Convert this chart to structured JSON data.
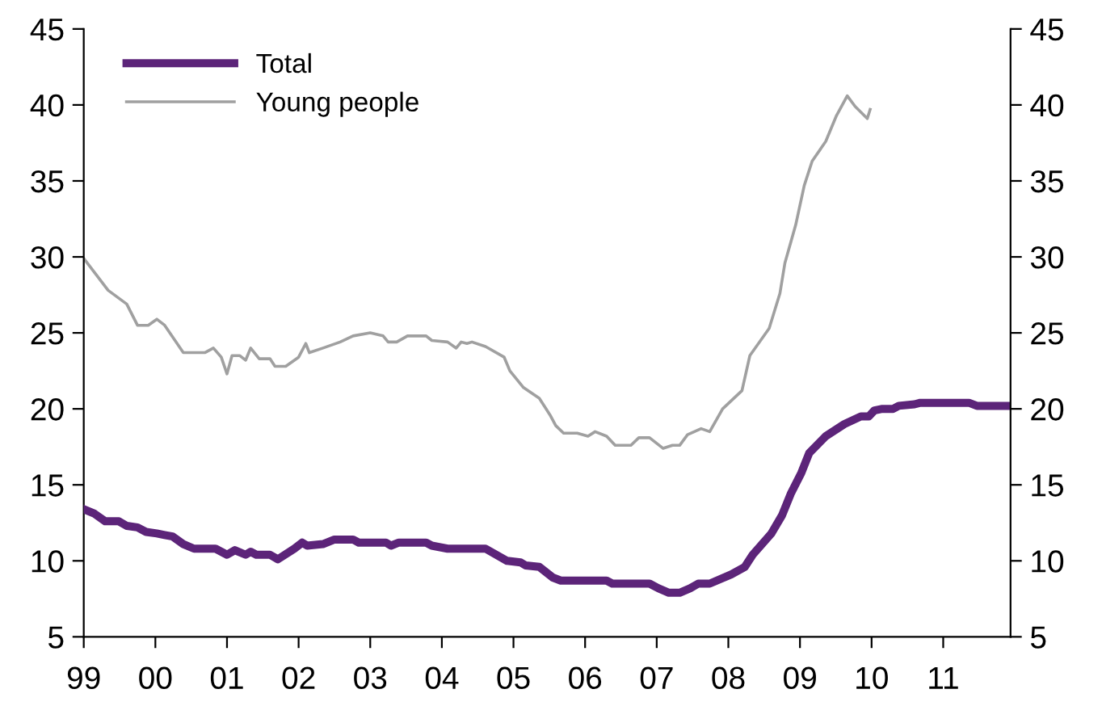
{
  "chart_data": {
    "type": "line",
    "xlim": [
      1999,
      2011.94
    ],
    "xticks": [
      {
        "value": 1999,
        "label": "99"
      },
      {
        "value": 2000,
        "label": "00"
      },
      {
        "value": 2001,
        "label": "01"
      },
      {
        "value": 2002,
        "label": "02"
      },
      {
        "value": 2003,
        "label": "03"
      },
      {
        "value": 2004,
        "label": "04"
      },
      {
        "value": 2005,
        "label": "05"
      },
      {
        "value": 2006,
        "label": "06"
      },
      {
        "value": 2007,
        "label": "07"
      },
      {
        "value": 2008,
        "label": "08"
      },
      {
        "value": 2009,
        "label": "09"
      },
      {
        "value": 2010,
        "label": "10"
      },
      {
        "value": 2011,
        "label": "11"
      }
    ],
    "ylim": [
      5,
      45
    ],
    "yticks": [
      5,
      10,
      15,
      20,
      25,
      30,
      35,
      40,
      45
    ],
    "y2lim": [
      5,
      45
    ],
    "y2ticks": [
      5,
      10,
      15,
      20,
      25,
      30,
      35,
      40,
      45
    ],
    "grid": false,
    "legend": "top left",
    "marker": "none",
    "line_style": "solid",
    "series": [
      {
        "name": "Total",
        "color": "#5c2479",
        "x": [
          1999,
          1999.15,
          1999.3,
          1999.49,
          1999.6,
          1999.75,
          1999.87,
          2000.02,
          2000.13,
          2000.24,
          2000.39,
          2000.54,
          2000.84,
          2001.0,
          2001.11,
          2001.26,
          2001.33,
          2001.41,
          2001.6,
          2001.71,
          2001.94,
          2002.05,
          2002.12,
          2002.34,
          2002.5,
          2002.76,
          2002.84,
          2003.22,
          2003.29,
          2003.4,
          2003.78,
          2003.86,
          2004.08,
          2004.61,
          2004.91,
          2005.1,
          2005.17,
          2005.36,
          2005.55,
          2005.66,
          2005.89,
          2006.04,
          2006.3,
          2006.38,
          2006.9,
          2007.02,
          2007.17,
          2007.32,
          2007.47,
          2007.58,
          2007.74,
          2008.04,
          2008.23,
          2008.34,
          2008.6,
          2008.75,
          2008.87,
          2009.02,
          2009.13,
          2009.36,
          2009.62,
          2009.85,
          2009.96,
          2010.04,
          2010.15,
          2010.3,
          2010.38,
          2010.6,
          2010.68,
          2011.36,
          2011.47,
          2011.94
        ],
        "values": [
          13.4,
          13.1,
          12.6,
          12.6,
          12.3,
          12.2,
          11.9,
          11.8,
          11.7,
          11.6,
          11.1,
          10.8,
          10.8,
          10.4,
          10.7,
          10.4,
          10.6,
          10.4,
          10.4,
          10.1,
          10.8,
          11.2,
          11.0,
          11.1,
          11.4,
          11.4,
          11.2,
          11.2,
          11.0,
          11.2,
          11.2,
          11.0,
          10.8,
          10.8,
          10.0,
          9.9,
          9.7,
          9.6,
          8.9,
          8.7,
          8.7,
          8.7,
          8.7,
          8.5,
          8.5,
          8.2,
          7.9,
          7.9,
          8.2,
          8.5,
          8.5,
          9.1,
          9.6,
          10.4,
          11.8,
          13.0,
          14.4,
          15.8,
          17.1,
          18.2,
          19.0,
          19.5,
          19.5,
          19.9,
          20.0,
          20.0,
          20.2,
          20.3,
          20.4,
          20.4,
          20.2,
          20.2
        ]
      },
      {
        "name": "Young people",
        "color": "#a0a0a0",
        "x": [
          1999,
          1999.34,
          1999.6,
          1999.75,
          1999.9,
          2000.02,
          2000.13,
          2000.39,
          2000.69,
          2000.81,
          2000.92,
          2001.0,
          2001.07,
          2001.18,
          2001.26,
          2001.33,
          2001.45,
          2001.6,
          2001.67,
          2001.82,
          2002.0,
          2002.1,
          2002.15,
          2002.34,
          2002.58,
          2002.76,
          2003.0,
          2003.18,
          2003.25,
          2003.37,
          2003.52,
          2003.78,
          2003.86,
          2004.08,
          2004.2,
          2004.27,
          2004.35,
          2004.42,
          2004.61,
          2004.87,
          2004.95,
          2005.14,
          2005.36,
          2005.51,
          2005.59,
          2005.7,
          2005.89,
          2006.04,
          2006.14,
          2006.3,
          2006.42,
          2006.64,
          2006.75,
          2006.9,
          2007.09,
          2007.22,
          2007.32,
          2007.43,
          2007.62,
          2007.74,
          2007.92,
          2008.19,
          2008.3,
          2008.57,
          2008.72,
          2008.79,
          2008.94,
          2009.06,
          2009.17,
          2009.36,
          2009.51,
          2009.66,
          2009.77,
          2009.94,
          2009.98
        ],
        "values": [
          29.9,
          27.8,
          26.9,
          25.5,
          25.5,
          25.9,
          25.5,
          23.7,
          23.7,
          24.0,
          23.4,
          22.3,
          23.5,
          23.5,
          23.2,
          24.0,
          23.3,
          23.3,
          22.8,
          22.8,
          23.4,
          24.3,
          23.7,
          24.0,
          24.4,
          24.8,
          25.0,
          24.8,
          24.4,
          24.4,
          24.8,
          24.8,
          24.5,
          24.4,
          24.0,
          24.4,
          24.3,
          24.4,
          24.1,
          23.4,
          22.5,
          21.4,
          20.7,
          19.6,
          18.9,
          18.4,
          18.4,
          18.2,
          18.5,
          18.2,
          17.6,
          17.6,
          18.1,
          18.1,
          17.4,
          17.6,
          17.6,
          18.3,
          18.7,
          18.5,
          20.0,
          21.2,
          23.5,
          25.3,
          27.6,
          29.6,
          32.1,
          34.7,
          36.3,
          37.6,
          39.3,
          40.6,
          39.9,
          39.1,
          39.7
        ]
      }
    ]
  }
}
